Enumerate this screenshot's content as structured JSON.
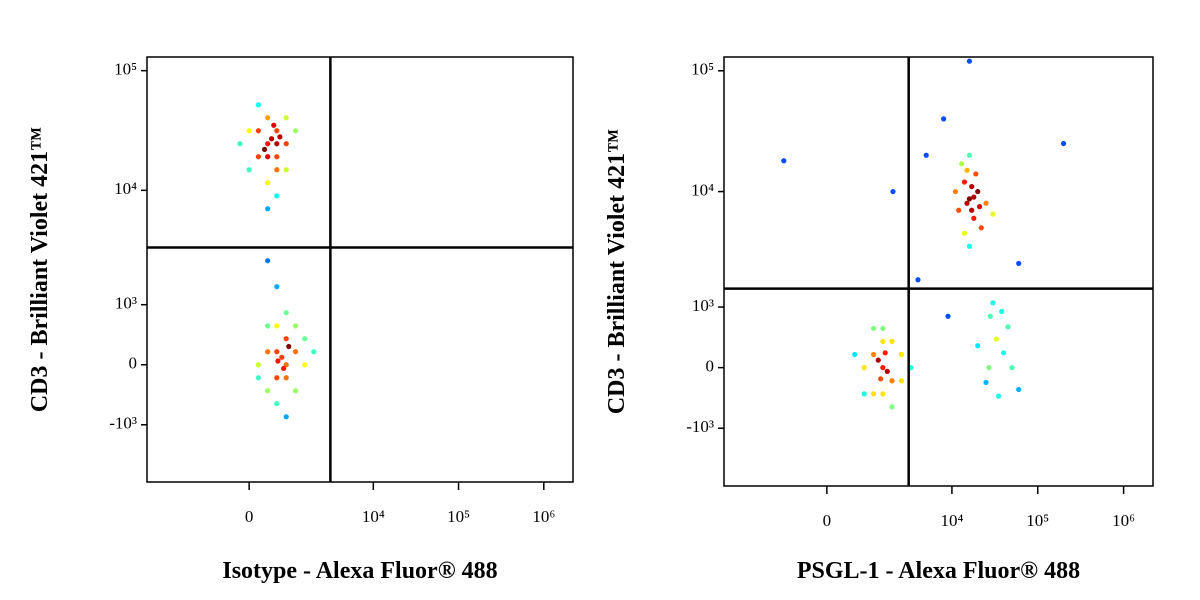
{
  "chart_data": [
    {
      "type": "scatter",
      "xscale": "biexponential",
      "yscale": "biexponential",
      "colormap": "jet",
      "x_label": "Isotype - Alexa Fluor® 488",
      "y_label": "CD3 - Brilliant Violet 421™",
      "xlim": [
        -5500,
        2200000
      ],
      "ylim": [
        -3300,
        130000
      ],
      "xticks": [
        0,
        {
          "value": 10000,
          "label": "10⁴"
        },
        {
          "value": 100000,
          "label": "10⁵"
        },
        {
          "value": 1000000,
          "label": "10⁶"
        }
      ],
      "yticks": [
        {
          "value": 100000,
          "label": "10⁵"
        },
        {
          "value": 10000,
          "label": "10⁴"
        },
        {
          "value": 1000,
          "label": "10³"
        },
        0,
        {
          "value": -1000,
          "label": "-10³"
        }
      ],
      "quadrant_gate": {
        "x": 3100,
        "y": 3300
      },
      "x": [
        365,
        573,
        177,
        823,
        365,
        0,
        573,
        365,
        177,
        823,
        573,
        -177,
        1126,
        365,
        573,
        177,
        823,
        365,
        573,
        0,
        450,
        300,
        650,
        500,
        573,
        823,
        823,
        365,
        1126,
        573,
        1126,
        823,
        365,
        1492,
        177,
        573,
        823,
        1126,
        365,
        573,
        823,
        1492,
        177,
        1946,
        700,
        900,
        600,
        750,
        573,
        365
      ],
      "values": [
        24530,
        31500,
        19100,
        24530,
        40400,
        31500,
        14860,
        11580,
        51900,
        40400,
        19100,
        24530,
        31500,
        19100,
        9000,
        31500,
        14860,
        7010,
        24530,
        14860,
        27000,
        22000,
        28000,
        35000,
        177,
        0,
        365,
        177,
        177,
        -177,
        -365,
        -177,
        -365,
        0,
        0,
        573,
        823,
        573,
        573,
        -573,
        -823,
        365,
        -177,
        177,
        100,
        250,
        50,
        -50,
        1492,
        2539
      ]
    },
    {
      "type": "scatter",
      "xscale": "biexponential",
      "yscale": "biexponential",
      "colormap": "jet",
      "x_label": "PSGL-1 - Alexa Fluor® 488",
      "y_label": "CD3 - Brilliant Violet 421™",
      "xlim": [
        -5500,
        2200000
      ],
      "ylim": [
        -3300,
        130000
      ],
      "xticks": [
        0,
        {
          "value": 10000,
          "label": "10⁴"
        },
        {
          "value": 100000,
          "label": "10⁵"
        },
        {
          "value": 1000000,
          "label": "10⁶"
        }
      ],
      "yticks": [
        {
          "value": 100000,
          "label": "10⁵"
        },
        {
          "value": 10000,
          "label": "10⁴"
        },
        {
          "value": 1000,
          "label": "10³"
        },
        0,
        {
          "value": -1000,
          "label": "-10³"
        }
      ],
      "quadrant_gate": {
        "x": 3100,
        "y": 1500
      },
      "x": [
        1492,
        1126,
        1946,
        1492,
        823,
        2539,
        1126,
        1946,
        1492,
        573,
        2539,
        1126,
        1946,
        823,
        1492,
        3290,
        1300,
        1700,
        1600,
        1400,
        16000,
        14000,
        18000,
        20000,
        15000,
        12000,
        22000,
        17000,
        14000,
        25000,
        16000,
        13000,
        19000,
        21000,
        11000,
        30000,
        16000,
        18000,
        15000,
        17000,
        33000,
        28000,
        40000,
        25000,
        45000,
        35000,
        30000,
        50000,
        20000,
        38000,
        60000,
        27000,
        5000,
        2000,
        8000,
        200000,
        60000,
        4000,
        9000,
        16000,
        -1000
      ],
      "values": [
        0,
        177,
        -177,
        365,
        0,
        177,
        -365,
        365,
        -365,
        177,
        -177,
        573,
        -573,
        -365,
        573,
        0,
        100,
        -50,
        200,
        -150,
        8700,
        12000,
        6000,
        10000,
        15000,
        7000,
        5000,
        11000,
        4500,
        8000,
        3500,
        17000,
        14000,
        7500,
        10000,
        6500,
        20000,
        9000,
        8000,
        7000,
        400,
        800,
        200,
        -200,
        600,
        -400,
        1100,
        0,
        300,
        900,
        -300,
        0,
        20000,
        10000,
        40000,
        25000,
        2500,
        1800,
        800,
        120000,
        18000
      ]
    }
  ]
}
